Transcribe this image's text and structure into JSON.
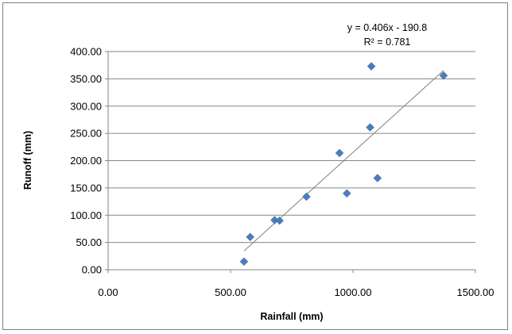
{
  "chart_data": {
    "type": "scatter",
    "xlabel": "Rainfall (mm)",
    "ylabel": "Runoff (mm)",
    "xlim": [
      0,
      1500
    ],
    "ylim": [
      0,
      400
    ],
    "x_ticks": [
      0,
      500,
      1000,
      1500
    ],
    "y_ticks": [
      0,
      50,
      100,
      150,
      200,
      250,
      300,
      350,
      400
    ],
    "x_tick_labels": [
      "0.00",
      "500.00",
      "1000.00",
      "1500.00"
    ],
    "y_tick_labels": [
      "0.00",
      "50.00",
      "100.00",
      "150.00",
      "200.00",
      "250.00",
      "300.00",
      "350.00",
      "400.00"
    ],
    "grid": "horizontal",
    "marker_color": "#4a7ebb",
    "points": [
      {
        "x": 555,
        "y": 15
      },
      {
        "x": 580,
        "y": 60
      },
      {
        "x": 680,
        "y": 91
      },
      {
        "x": 700,
        "y": 90
      },
      {
        "x": 810,
        "y": 134
      },
      {
        "x": 945,
        "y": 214
      },
      {
        "x": 975,
        "y": 140
      },
      {
        "x": 1070,
        "y": 261
      },
      {
        "x": 1075,
        "y": 373
      },
      {
        "x": 1100,
        "y": 168
      },
      {
        "x": 1370,
        "y": 356
      }
    ],
    "trendline": {
      "slope": 0.406,
      "intercept": -190.8,
      "x_range": [
        555,
        1370
      ],
      "color": "#808080"
    },
    "equation_label": "y = 0.406x - 190.8",
    "r2_label": "R² = 0.781"
  }
}
